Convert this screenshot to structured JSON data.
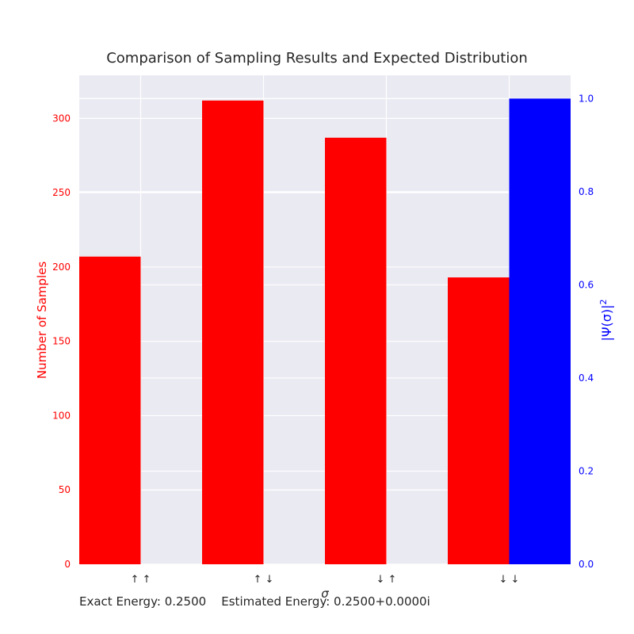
{
  "chart_data": {
    "type": "bar",
    "title": "Comparison of Sampling Results and Expected Distribution",
    "xlabel": "σ",
    "categories": [
      "↑ ↑",
      "↑ ↓",
      "↓ ↑",
      "↓ ↓"
    ],
    "series": [
      {
        "name": "Number of Samples",
        "axis": "left",
        "values": [
          207,
          312,
          287,
          193
        ]
      },
      {
        "name": "|Ψ(σ)|²",
        "axis": "right",
        "values": [
          0.0,
          0.0,
          0.0,
          1.0
        ]
      }
    ],
    "left_axis": {
      "label": "Number of Samples",
      "ticks": [
        0,
        50,
        100,
        150,
        200,
        250,
        300
      ],
      "ylim": [
        0,
        329
      ]
    },
    "right_axis": {
      "label_text": "|Ψ(σ)|",
      "label_superscript": "2",
      "ticks": [
        "0.0",
        "0.2",
        "0.4",
        "0.6",
        "0.8",
        "1.0"
      ],
      "ylim": [
        0,
        1.05
      ]
    },
    "grid": true,
    "colors": {
      "samples": "#ff0000",
      "expected": "#0000ff",
      "background": "#eaeaf2",
      "grid": "#ffffff",
      "text": "#262626"
    }
  },
  "footer": {
    "exact_energy": "Exact Energy: 0.2500",
    "estimated_energy": "Estimated Energy: 0.2500+0.0000i"
  }
}
